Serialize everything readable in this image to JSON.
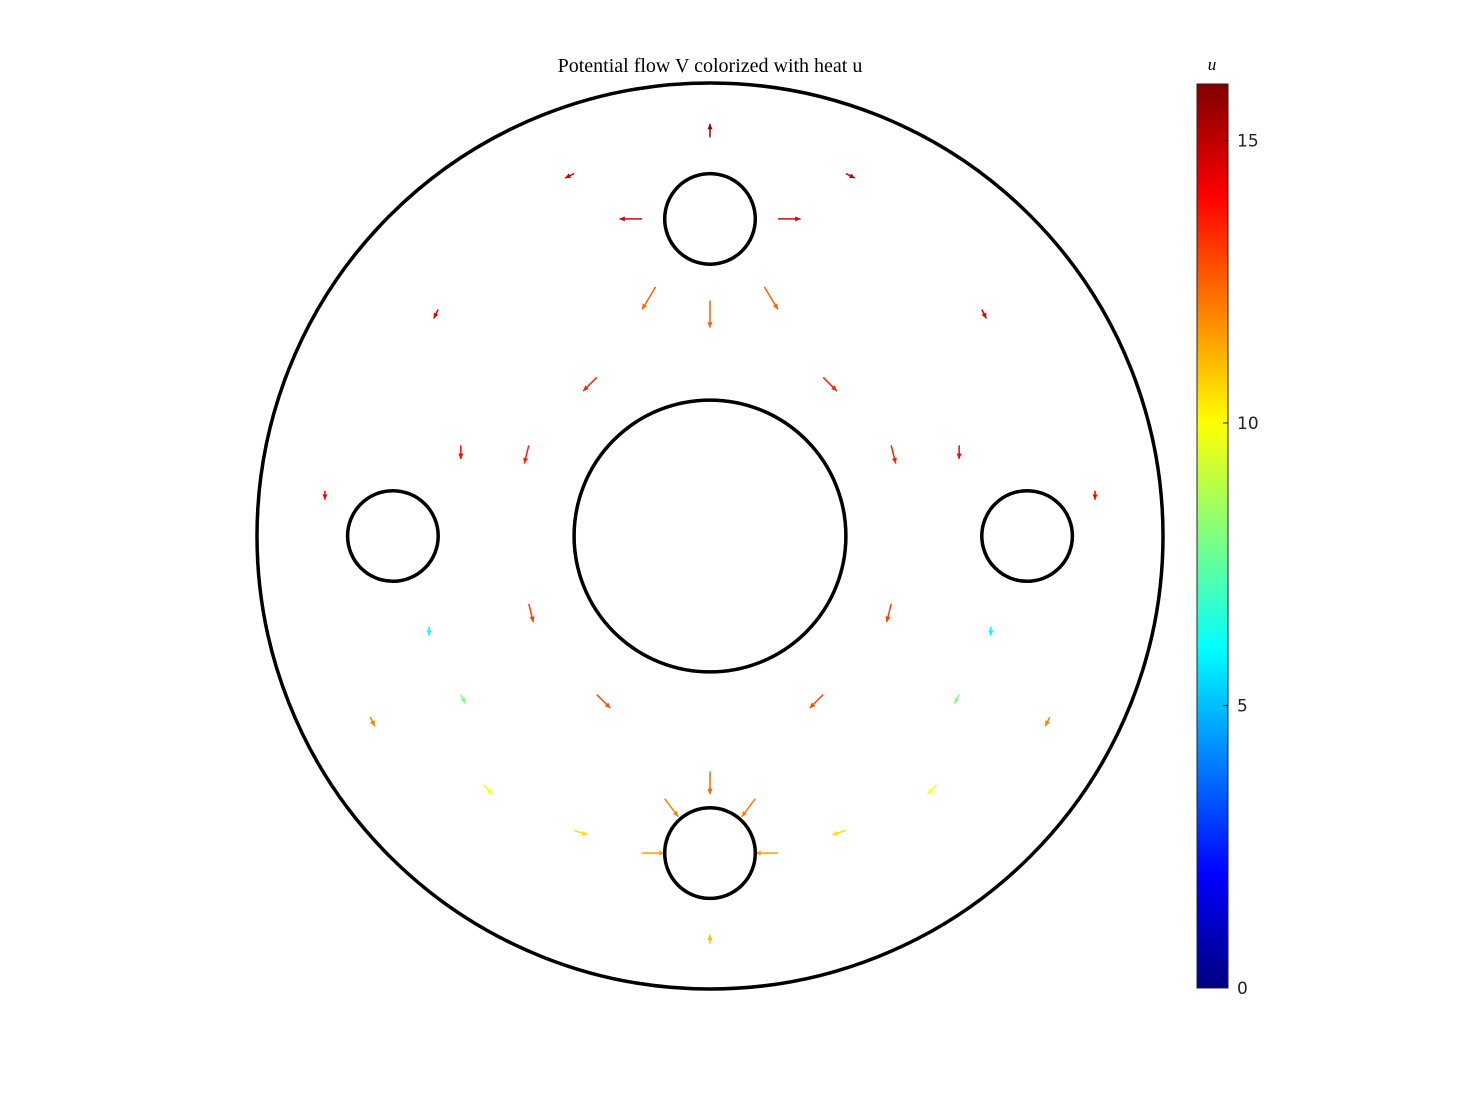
{
  "chart_data": {
    "type": "quiver",
    "title": "Potential flow V colorized with heat u",
    "colorbar_label": "u",
    "colormap": "jet",
    "clim": [
      0,
      16
    ],
    "cticks": [
      0,
      5,
      10,
      15
    ],
    "boundaries": {
      "cx": [
        0,
        0,
        0,
        0,
        -0.7,
        0.7
      ],
      "cy": [
        0,
        0,
        0.7,
        -0.7,
        0,
        0
      ],
      "r": [
        1,
        0.3,
        0.1,
        0.1,
        0.1,
        0.1
      ]
    },
    "arrows": {
      "x": [
        0.15,
        -0.15,
        0,
        0.12,
        -0.12,
        0,
        0.3,
        -0.3,
        0.4,
        -0.4,
        0.4,
        -0.4,
        0.25,
        -0.25,
        0.25,
        -0.25,
        0,
        0.15,
        -0.15,
        0.1,
        -0.1,
        0.3,
        -0.3,
        0,
        -0.62,
        0.62,
        -0.55,
        0.55,
        -0.5,
        0.5,
        -0.85,
        0.85,
        -0.55,
        0.55,
        -0.75,
        0.75,
        -0.6,
        0.6
      ],
      "y": [
        0.7,
        0.7,
        0.52,
        0.55,
        0.55,
        0.88,
        0.8,
        0.8,
        0.2,
        0.2,
        -0.15,
        -0.15,
        0.35,
        0.35,
        -0.35,
        -0.35,
        -0.52,
        -0.7,
        -0.7,
        -0.58,
        -0.58,
        -0.65,
        -0.65,
        -0.9,
        -0.2,
        -0.2,
        -0.35,
        -0.35,
        -0.55,
        -0.55,
        0.1,
        0.1,
        0.2,
        0.2,
        -0.4,
        -0.4,
        0.5,
        0.5
      ],
      "u": [
        0.05,
        -0.05,
        0,
        0.03,
        -0.03,
        0,
        0.02,
        -0.02,
        0.01,
        -0.01,
        -0.01,
        0.01,
        0.03,
        -0.03,
        -0.03,
        0.03,
        0,
        -0.05,
        0.05,
        -0.03,
        0.03,
        -0.03,
        0.03,
        0,
        0,
        0,
        0.01,
        -0.01,
        0.02,
        -0.02,
        0,
        0,
        0,
        0,
        0.01,
        -0.01,
        -0.01,
        0.01
      ],
      "v": [
        0,
        0,
        -0.06,
        -0.05,
        -0.05,
        0.03,
        -0.01,
        -0.01,
        -0.04,
        -0.04,
        -0.04,
        -0.04,
        -0.03,
        -0.03,
        -0.03,
        -0.03,
        -0.05,
        0,
        0,
        -0.04,
        -0.04,
        -0.01,
        -0.01,
        0.02,
        -0.02,
        -0.02,
        -0.02,
        -0.02,
        -0.02,
        -0.02,
        -0.02,
        -0.02,
        -0.03,
        -0.03,
        -0.02,
        -0.02,
        -0.02,
        -0.02
      ],
      "heat": [
        14.5,
        14.5,
        12.5,
        12.5,
        12.5,
        15.5,
        14.8,
        14.8,
        13.5,
        13.5,
        13,
        13,
        13.5,
        13.5,
        12.8,
        12.8,
        12.5,
        11.5,
        11.5,
        12,
        12,
        10.5,
        10.5,
        11,
        6,
        6,
        8,
        8,
        10,
        10,
        14,
        14,
        14,
        14,
        12,
        12,
        14.5,
        14.5
      ]
    }
  }
}
